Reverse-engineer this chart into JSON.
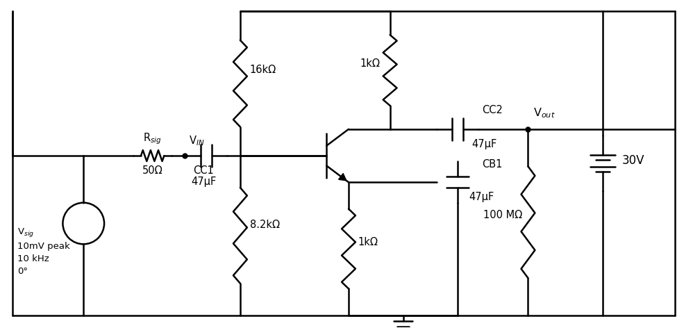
{
  "bg_color": "#ffffff",
  "line_color": "#000000",
  "line_width": 1.8,
  "fig_width": 9.98,
  "fig_height": 4.72,
  "labels": {
    "vsig": "V$_{sig}$\n10mV peak\n10 kHz\n0°",
    "rsig": "R$_{sig}$",
    "vin": "V$_{IN}$",
    "r1": "16kΩ",
    "r2": "8.2kΩ",
    "rc": "1kΩ",
    "re": "1kΩ",
    "cc1_label": "CC1",
    "cc1_val": "47μF",
    "cc2": "CC2",
    "cc2_val": "47μF",
    "cb1": "CB1",
    "cb1_val": "47μF",
    "rload": "100 MΩ",
    "vcc": "30V",
    "rsig_val": "50Ω",
    "vout": "V$_{out}$"
  }
}
